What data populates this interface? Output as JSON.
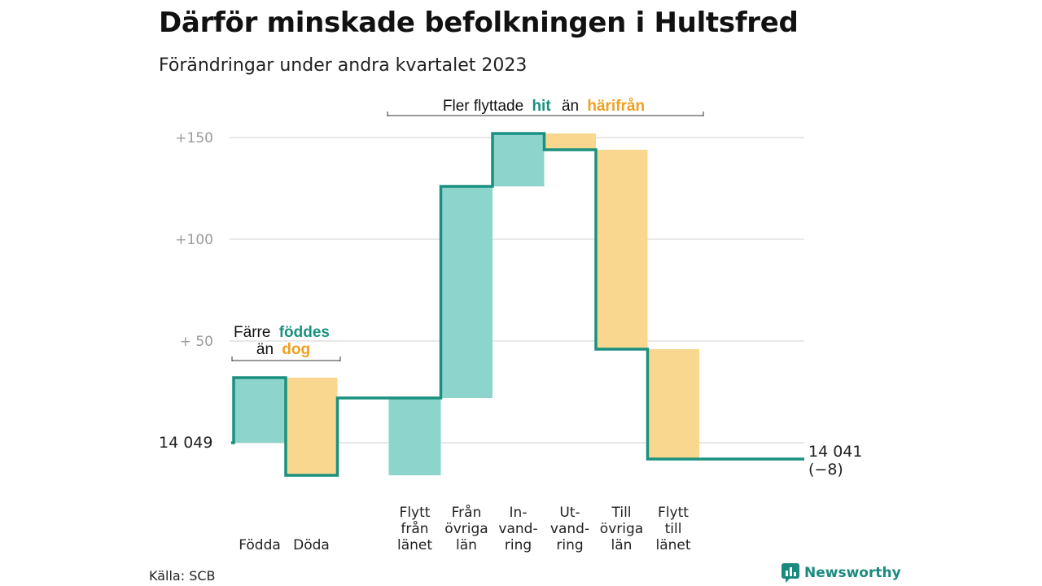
{
  "title": "Därför minskade befolkningen i Hultsfred",
  "subtitle": "Förändringar under andra kvartalet 2023",
  "source": "Källa: SCB",
  "brand": {
    "name": "Newsworthy",
    "icon": "newsworthy-logo-icon"
  },
  "colors": {
    "increase": "#8dd5cc",
    "decrease": "#fad78e",
    "line": "#1a9180",
    "teal_text": "#1a9180",
    "orange_text": "#f0a020",
    "grid": "#e0e0e0",
    "tick": "#9a9a9a"
  },
  "annotations": {
    "births": {
      "word1": "Färre",
      "highlight1": "föddes",
      "word2": "än",
      "highlight2": "dog"
    },
    "migration": {
      "word1": "Fler flyttade",
      "highlight1": "hit",
      "word2": "än",
      "highlight2": "härifrån"
    }
  },
  "chart_data": {
    "type": "waterfall",
    "y_ticks": [
      {
        "value": 50,
        "label": "+  50"
      },
      {
        "value": 100,
        "label": "+100"
      },
      {
        "value": 150,
        "label": "+150"
      }
    ],
    "start": {
      "value": 14049,
      "label": "14  049"
    },
    "end": {
      "value": 14041,
      "label": "14 041",
      "change_label": "(−8)"
    },
    "steps": [
      {
        "label": [
          "Födda"
        ],
        "change": 32,
        "direction": "increase"
      },
      {
        "label": [
          "Döda"
        ],
        "change": -48,
        "direction": "decrease"
      },
      {
        "label": [
          "Flytt",
          "från",
          "länet"
        ],
        "change": 38,
        "direction": "increase"
      },
      {
        "label": [
          "Från",
          "övriga",
          "län"
        ],
        "change": 104,
        "direction": "increase"
      },
      {
        "label": [
          "In-",
          "vand-",
          "ring"
        ],
        "change": 26,
        "direction": "increase"
      },
      {
        "label": [
          "Ut-",
          "vand-",
          "ring"
        ],
        "change": -8,
        "direction": "decrease"
      },
      {
        "label": [
          "Till",
          "övriga",
          "län"
        ],
        "change": -98,
        "direction": "decrease"
      },
      {
        "label": [
          "Flytt",
          "till",
          "länet"
        ],
        "change": -54,
        "direction": "decrease"
      }
    ],
    "gaps_after": [
      1
    ]
  }
}
